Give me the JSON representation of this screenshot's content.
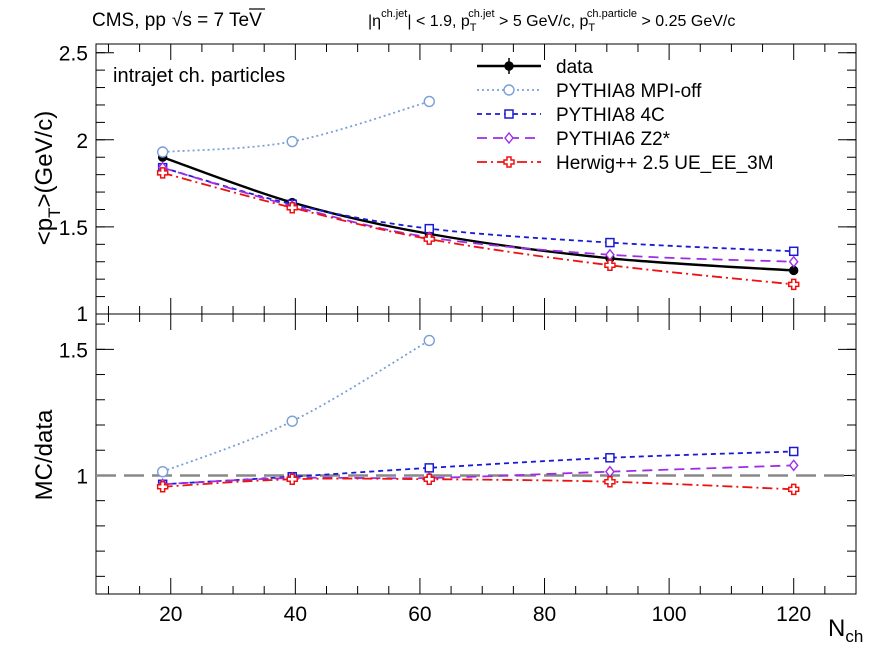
{
  "header": {
    "left_prefix": "CMS, pp",
    "sqrt_symbol": "√",
    "left_suffix": "s = 7 TeV",
    "cut_eta_open": "|η",
    "cut_eta_sup": "ch.jet",
    "cut_eta_rest": "| < 1.9, p",
    "cut_pt_sub": "T",
    "cut_pt_sup": "ch.jet",
    "cut_pt_rest": " > 5 GeV/c, p",
    "cut_ptp_sub": "T",
    "cut_ptp_sup": "ch.particle",
    "cut_ptp_rest": " > 0.25 GeV/c"
  },
  "colors": {
    "data": "#000000",
    "mpi_off": "#7a9fd6",
    "tune_4c": "#1a1ad4",
    "z2star": "#9d2ee6",
    "herwig": "#ee1111",
    "unity_line": "#888888"
  },
  "chart_data": [
    {
      "type": "line",
      "panel": "top",
      "annotation": "intrajet ch. particles",
      "ylabel_main": "<p",
      "ylabel_sub": "T",
      "ylabel_rest": ">(GeV/c)",
      "ylim": [
        1.0,
        2.55
      ],
      "xlim": [
        8,
        130
      ],
      "y_ticks": [
        1.5,
        2,
        2.5
      ],
      "y_tick_labels": [
        "1.5",
        "2",
        "2.5"
      ],
      "y_edge_label": "1",
      "legend_position": "top-right",
      "series": [
        {
          "name": "data",
          "style": "data",
          "x": [
            18.7,
            39.5,
            61.5,
            90.5,
            120.0
          ],
          "y": [
            1.9,
            1.64,
            1.46,
            1.32,
            1.25
          ]
        },
        {
          "name": "PYTHIA8 MPI-off",
          "style": "mpi_off",
          "x": [
            18.7,
            39.5,
            61.5
          ],
          "y": [
            1.93,
            1.99,
            2.22
          ]
        },
        {
          "name": "PYTHIA8 4C",
          "style": "tune_4c",
          "x": [
            18.7,
            39.5,
            61.5,
            90.5,
            120.0
          ],
          "y": [
            1.84,
            1.63,
            1.49,
            1.41,
            1.36
          ]
        },
        {
          "name": "PYTHIA6 Z2*",
          "style": "z2star",
          "x": [
            18.7,
            39.5,
            61.5,
            90.5,
            120.0
          ],
          "y": [
            1.84,
            1.62,
            1.44,
            1.34,
            1.3
          ]
        },
        {
          "name": "Herwig++ 2.5  UE_EE_3M",
          "style": "herwig",
          "x": [
            18.7,
            39.5,
            61.5,
            90.5,
            120.0
          ],
          "y": [
            1.81,
            1.61,
            1.43,
            1.28,
            1.17
          ]
        }
      ]
    },
    {
      "type": "line",
      "panel": "bottom",
      "ylabel": "MC/data",
      "xlabel_main": "N",
      "xlabel_sub": "ch",
      "ylim": [
        0.53,
        1.64
      ],
      "xlim": [
        8,
        130
      ],
      "y_ticks": [
        1,
        1.5
      ],
      "y_tick_labels": [
        "1",
        "1.5"
      ],
      "x_ticks": [
        20,
        40,
        60,
        80,
        100,
        120
      ],
      "x_tick_labels": [
        "20",
        "40",
        "60",
        "80",
        "100",
        "120"
      ],
      "reference_line": 1.0,
      "series": [
        {
          "name": "PYTHIA8 MPI-off",
          "style": "mpi_off",
          "x": [
            18.7,
            39.5,
            61.5
          ],
          "y": [
            1.015,
            1.215,
            1.535
          ]
        },
        {
          "name": "PYTHIA8 4C",
          "style": "tune_4c",
          "x": [
            18.7,
            39.5,
            61.5,
            90.5,
            120.0
          ],
          "y": [
            0.965,
            0.995,
            1.03,
            1.07,
            1.095
          ]
        },
        {
          "name": "PYTHIA6 Z2*",
          "style": "z2star",
          "x": [
            18.7,
            39.5,
            61.5,
            90.5,
            120.0
          ],
          "y": [
            0.965,
            0.99,
            0.99,
            1.015,
            1.04
          ]
        },
        {
          "name": "Herwig++ 2.5  UE_EE_3M",
          "style": "herwig",
          "x": [
            18.7,
            39.5,
            61.5,
            90.5,
            120.0
          ],
          "y": [
            0.955,
            0.985,
            0.985,
            0.975,
            0.945
          ]
        }
      ]
    }
  ]
}
